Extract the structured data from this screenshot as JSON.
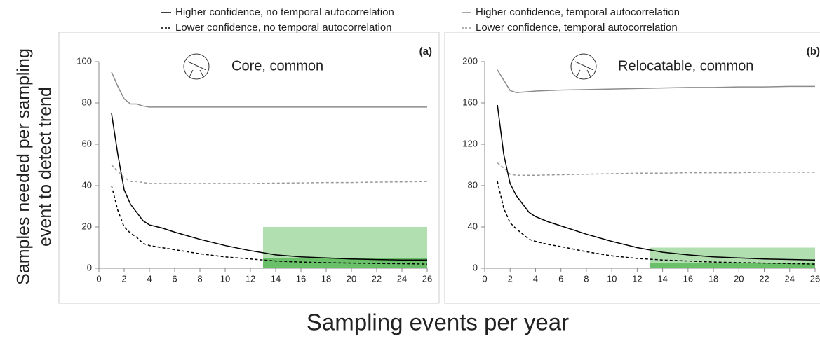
{
  "figure": {
    "ylabel_lines": [
      "Samples needed per sampling",
      "event to detect trend"
    ],
    "xlabel": "Sampling events per year"
  },
  "chart_data": [
    {
      "type": "line",
      "title": "Core, common",
      "panel_label": "(a)",
      "x": [
        1,
        1.5,
        2,
        2.5,
        3,
        3.5,
        4,
        5,
        6,
        8,
        10,
        12,
        14,
        16,
        18,
        20,
        22,
        24,
        26
      ],
      "xlim": [
        0,
        26
      ],
      "xticks": [
        0,
        2,
        4,
        6,
        8,
        10,
        12,
        14,
        16,
        18,
        20,
        22,
        24,
        26
      ],
      "ylim": [
        0,
        100
      ],
      "yticks": [
        0,
        20,
        40,
        60,
        80,
        100
      ],
      "shaded_regions": [
        {
          "xlim": [
            13,
            26
          ],
          "ylim": [
            0,
            20
          ],
          "color": "#b2dfb0"
        },
        {
          "xlim": [
            13,
            26
          ],
          "ylim": [
            0,
            5
          ],
          "color": "#6abf69"
        }
      ],
      "series": [
        {
          "name": "Higher confidence, no temporal autocorrelation",
          "color": "#000000",
          "dashed": false,
          "values": [
            75,
            55,
            38,
            31,
            27,
            23,
            21,
            19.5,
            17.5,
            14,
            11,
            8.5,
            6.5,
            5.5,
            5,
            4.5,
            4.2,
            4,
            4
          ]
        },
        {
          "name": "Lower confidence, no temporal autocorrelation",
          "color": "#000000",
          "dashed": true,
          "values": [
            40,
            28,
            20,
            17,
            15,
            12,
            11,
            10,
            9,
            7,
            5.5,
            4.5,
            3.5,
            3,
            2.7,
            2.5,
            2.3,
            2.2,
            2
          ]
        },
        {
          "name": "Higher confidence, temporal autocorrelation",
          "color": "#8c8c8c",
          "dashed": false,
          "values": [
            95,
            88,
            82,
            79.5,
            79.5,
            78.5,
            78,
            78,
            78,
            78,
            78,
            78,
            78,
            78,
            78,
            78,
            78,
            78,
            78
          ]
        },
        {
          "name": "Lower confidence, temporal autocorrelation",
          "color": "#999999",
          "dashed": true,
          "values": [
            50,
            47,
            44,
            42,
            42,
            41.5,
            41,
            41,
            41,
            41,
            41,
            41,
            41.2,
            41.3,
            41.5,
            41.5,
            41.7,
            41.8,
            42
          ]
        }
      ]
    },
    {
      "type": "line",
      "title": "Relocatable, common",
      "panel_label": "(b)",
      "x": [
        1,
        1.5,
        2,
        2.5,
        3,
        3.5,
        4,
        5,
        6,
        8,
        10,
        12,
        14,
        16,
        18,
        20,
        22,
        24,
        26
      ],
      "xlim": [
        0,
        26
      ],
      "xticks": [
        0,
        2,
        4,
        6,
        8,
        10,
        12,
        14,
        16,
        18,
        20,
        22,
        24,
        26
      ],
      "ylim": [
        0,
        200
      ],
      "yticks": [
        0,
        40,
        80,
        120,
        160,
        200
      ],
      "shaded_regions": [
        {
          "xlim": [
            13,
            26
          ],
          "ylim": [
            0,
            20
          ],
          "color": "#b2dfb0"
        },
        {
          "xlim": [
            13,
            26
          ],
          "ylim": [
            0,
            5
          ],
          "color": "#6abf69"
        }
      ],
      "series": [
        {
          "name": "Higher confidence, no temporal autocorrelation",
          "color": "#000000",
          "dashed": false,
          "values": [
            158,
            110,
            82,
            70,
            62,
            54,
            50,
            45,
            41,
            33,
            26,
            20,
            15.5,
            13,
            11,
            10,
            9,
            8.5,
            8
          ]
        },
        {
          "name": "Lower confidence, no temporal autocorrelation",
          "color": "#000000",
          "dashed": true,
          "values": [
            84,
            58,
            44,
            38,
            33,
            28,
            26,
            23,
            21,
            16,
            12,
            9.5,
            8,
            7,
            6,
            5.5,
            5,
            4.5,
            4
          ]
        },
        {
          "name": "Higher confidence, temporal autocorrelation",
          "color": "#8c8c8c",
          "dashed": false,
          "values": [
            192,
            182,
            172,
            170,
            170.5,
            171,
            171.5,
            172,
            172.5,
            173,
            173.5,
            174,
            174.5,
            175,
            175,
            175.5,
            175.5,
            176,
            176
          ]
        },
        {
          "name": "Lower confidence, temporal autocorrelation",
          "color": "#999999",
          "dashed": true,
          "values": [
            102,
            97,
            91,
            90,
            90,
            90,
            90,
            90.3,
            90.5,
            91,
            91.5,
            92,
            92,
            92.5,
            92.5,
            92.5,
            93,
            93,
            93
          ]
        }
      ]
    }
  ]
}
